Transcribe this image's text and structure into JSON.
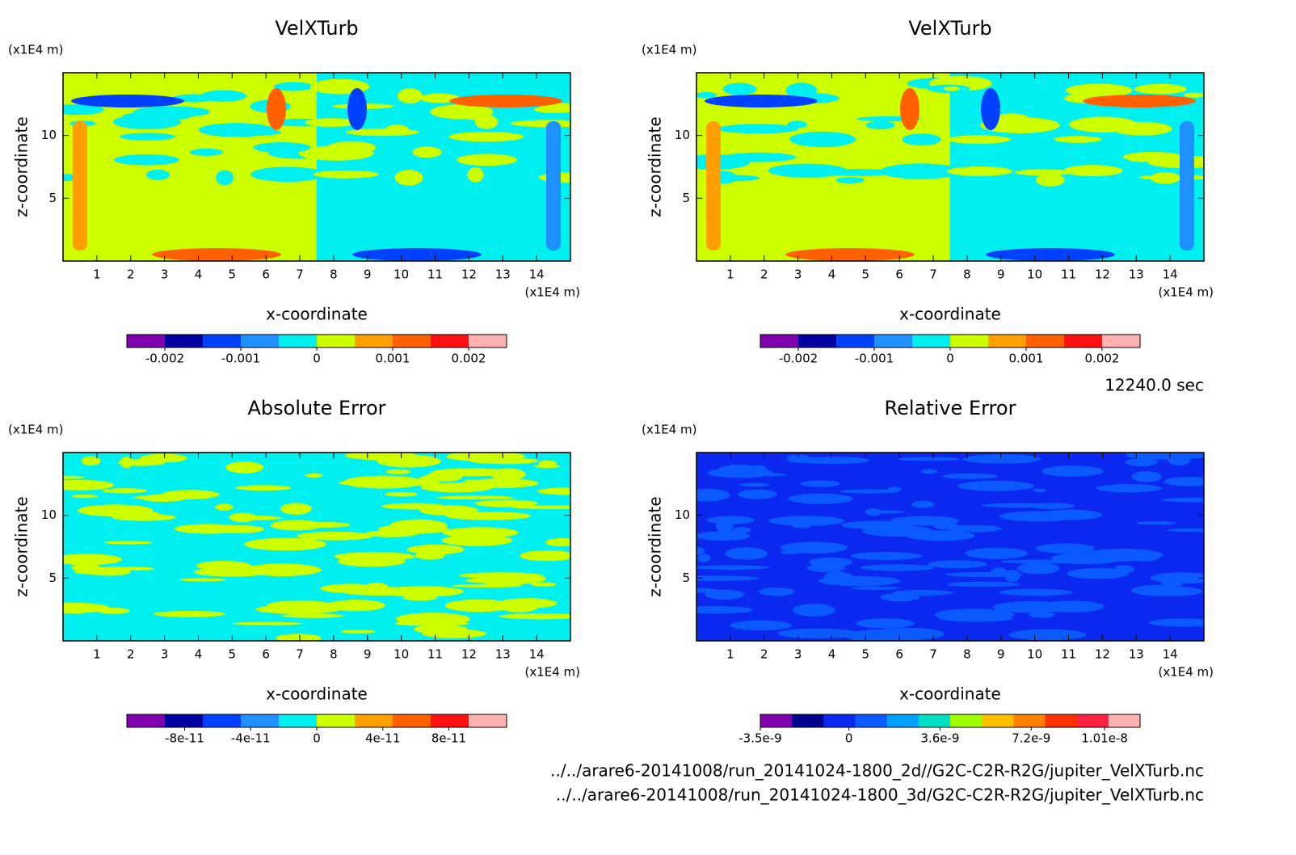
{
  "chart_data": [
    {
      "type": "contour",
      "title": "VelXTurb",
      "xlabel": "x-coordinate",
      "ylabel": "z-coordinate",
      "x_unit": "(x1E4 m)",
      "y_unit": "(x1E4 m)",
      "xlim": [
        0,
        15
      ],
      "ylim": [
        0,
        15
      ],
      "xticks": [
        1,
        2,
        3,
        4,
        5,
        6,
        7,
        8,
        9,
        10,
        11,
        12,
        13,
        14
      ],
      "yticks": [
        5,
        10
      ],
      "colorbar": {
        "clim": [
          -0.0025,
          0.0025
        ],
        "ticks": [
          -0.002,
          -0.001,
          0,
          0.001,
          0.002
        ],
        "colors": [
          "#8000b0",
          "#0000a0",
          "#0040ff",
          "#1e90ff",
          "#00f0f0",
          "#ccff00",
          "#ffa000",
          "#ff6000",
          "#ff1010",
          "#ffb0b0"
        ]
      }
    },
    {
      "type": "contour",
      "title": "VelXTurb",
      "xlabel": "x-coordinate",
      "ylabel": "z-coordinate",
      "x_unit": "(x1E4 m)",
      "y_unit": "(x1E4 m)",
      "xlim": [
        0,
        15
      ],
      "ylim": [
        0,
        15
      ],
      "xticks": [
        1,
        2,
        3,
        4,
        5,
        6,
        7,
        8,
        9,
        10,
        11,
        12,
        13,
        14
      ],
      "yticks": [
        5,
        10
      ],
      "colorbar": {
        "clim": [
          -0.0025,
          0.0025
        ],
        "ticks": [
          -0.002,
          -0.001,
          0,
          0.001,
          0.002
        ],
        "colors": [
          "#8000b0",
          "#0000a0",
          "#0040ff",
          "#1e90ff",
          "#00f0f0",
          "#ccff00",
          "#ffa000",
          "#ff6000",
          "#ff1010",
          "#ffb0b0"
        ]
      }
    },
    {
      "type": "contour",
      "title": "Absolute Error",
      "xlabel": "x-coordinate",
      "ylabel": "z-coordinate",
      "x_unit": "(x1E4 m)",
      "y_unit": "(x1E4 m)",
      "xlim": [
        0,
        15
      ],
      "ylim": [
        0,
        15
      ],
      "xticks": [
        1,
        2,
        3,
        4,
        5,
        6,
        7,
        8,
        9,
        10,
        11,
        12,
        13,
        14
      ],
      "yticks": [
        5,
        10
      ],
      "colorbar": {
        "clim": [
          -1.15e-10,
          1.15e-10
        ],
        "ticks": [
          -8e-11,
          -4e-11,
          0,
          4e-11,
          8e-11
        ],
        "colors": [
          "#8000b0",
          "#0000a0",
          "#0040ff",
          "#1e90ff",
          "#00f0f0",
          "#ccff00",
          "#ffa000",
          "#ff6000",
          "#ff1010",
          "#ffb0b0"
        ]
      }
    },
    {
      "type": "contour",
      "title": "Relative Error",
      "xlabel": "x-coordinate",
      "ylabel": "z-coordinate",
      "x_unit": "(x1E4 m)",
      "y_unit": "(x1E4 m)",
      "xlim": [
        0,
        15
      ],
      "ylim": [
        0,
        15
      ],
      "xticks": [
        1,
        2,
        3,
        4,
        5,
        6,
        7,
        8,
        9,
        10,
        11,
        12,
        13,
        14
      ],
      "yticks": [
        5,
        10
      ],
      "colorbar": {
        "clim": [
          -3.5e-09,
          1.15e-08
        ],
        "ticks": [
          -3.5e-09,
          0,
          3.6e-09,
          7.2e-09,
          1.01e-08
        ],
        "colors": [
          "#8000b0",
          "#00008c",
          "#0a28f0",
          "#0a5aff",
          "#00a0ff",
          "#00e0c0",
          "#a0ff00",
          "#ffc000",
          "#ff8000",
          "#ff3000",
          "#ff2040",
          "#ffb0b0"
        ]
      }
    }
  ],
  "time_label": "12240.0 sec",
  "files": [
    "../../arare6-20141008/run_20141024-1800_2d//G2C-C2R-R2G/jupiter_VelXTurb.nc",
    "../../arare6-20141008/run_20141024-1800_3d/G2C-C2R-R2G/jupiter_VelXTurb.nc"
  ]
}
